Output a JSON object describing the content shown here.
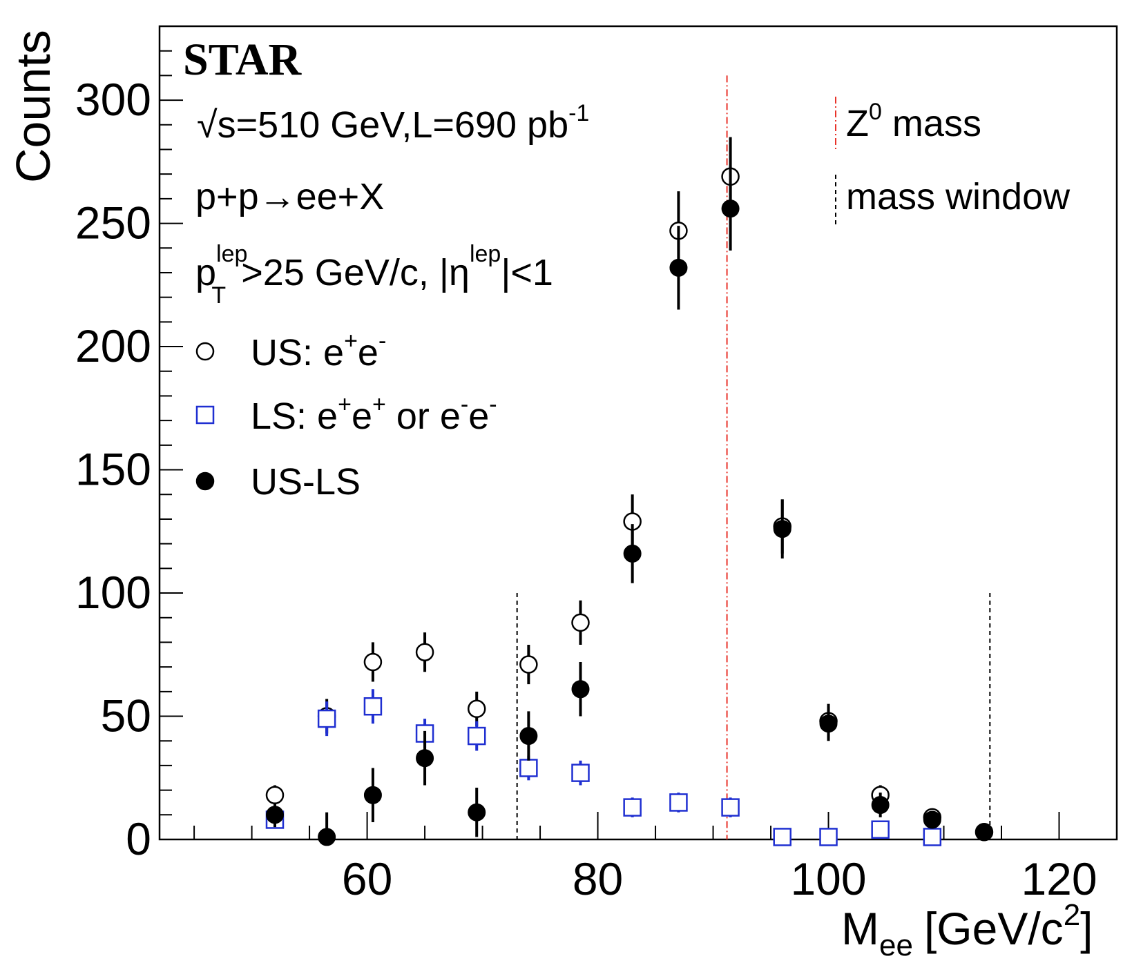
{
  "chart_data": {
    "type": "scatter",
    "title": "STAR",
    "xlabel": "M",
    "xlabel_sub": "ee",
    "xlabel_unit": "[GeV/c",
    "xlabel_unit_sup": "2",
    "xlabel_unit_end": "]",
    "ylabel": "Counts",
    "xlim": [
      42,
      125
    ],
    "ylim": [
      0,
      330
    ],
    "x_ticks": [
      60,
      80,
      100,
      120
    ],
    "y_ticks": [
      0,
      50,
      100,
      150,
      200,
      250,
      300
    ],
    "annotations": {
      "energy": "√s=510 GeV,L=690 pb",
      "energy_sup": "-1",
      "reaction": "p+p→ee+X",
      "cut_p": "p",
      "cut_p_sup": "lep",
      "cut_p_sub": "T",
      "cut_mid": ">25 GeV/c, |η",
      "cut_eta_sup": "lep",
      "cut_end": "|<1"
    },
    "legend": [
      {
        "label": "US: e",
        "sup1": "+",
        "label2": "e",
        "sup2": "-"
      },
      {
        "label": "LS: e",
        "sup1": "+",
        "label2": "e",
        "sup2": "+",
        "label3": " or e",
        "sup3": "-",
        "label4": "e",
        "sup4": "-"
      },
      {
        "label": "US-LS"
      }
    ],
    "line_legend": [
      {
        "label": "Z",
        "sup": "0",
        "label2": " mass",
        "color": "#e8332a"
      },
      {
        "label": "mass window",
        "color": "#000000"
      }
    ],
    "z_mass": 91.2,
    "mass_window": [
      73,
      114
    ],
    "series": [
      {
        "name": "US: e+e-",
        "marker": "open-circle",
        "color": "#000000",
        "x": [
          52,
          56.5,
          60.5,
          65,
          69.5,
          74,
          78.5,
          83,
          87,
          91.5,
          96,
          100,
          104.5,
          109,
          113.5
        ],
        "y": [
          18,
          50,
          72,
          76,
          53,
          71,
          88,
          129,
          247,
          269,
          127,
          48,
          18,
          9,
          3
        ],
        "err": [
          4,
          7,
          8,
          8,
          7,
          8,
          9,
          11,
          16,
          16,
          11,
          7,
          4,
          3,
          2
        ]
      },
      {
        "name": "LS: e+e+ or e-e-",
        "marker": "open-square",
        "color": "#1f2fd1",
        "x": [
          52,
          56.5,
          60.5,
          65,
          69.5,
          74,
          78.5,
          83,
          87,
          91.5,
          96,
          100,
          104.5,
          109
        ],
        "y": [
          8,
          49,
          54,
          43,
          42,
          29,
          27,
          13,
          15,
          13,
          1,
          1,
          4,
          1
        ],
        "err": [
          3,
          7,
          7,
          6,
          6,
          5,
          5,
          4,
          4,
          4,
          1,
          1,
          2,
          1
        ]
      },
      {
        "name": "US-LS",
        "marker": "filled-circle",
        "color": "#000000",
        "x": [
          52,
          56.5,
          60.5,
          65,
          69.5,
          74,
          78.5,
          83,
          87,
          91.5,
          96,
          100,
          104.5,
          109,
          113.5
        ],
        "y": [
          10,
          1,
          18,
          33,
          11,
          42,
          61,
          116,
          232,
          256,
          126,
          47,
          14,
          8,
          3
        ],
        "err": [
          5,
          10,
          11,
          11,
          10,
          10,
          11,
          12,
          17,
          17,
          12,
          7,
          5,
          3,
          2
        ]
      }
    ]
  }
}
